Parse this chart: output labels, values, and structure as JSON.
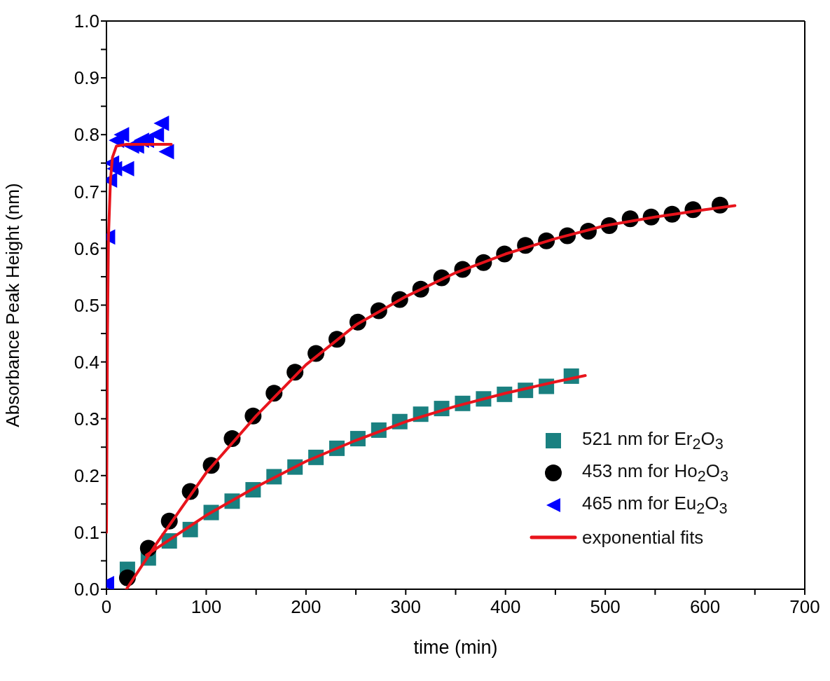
{
  "chart_data": {
    "type": "scatter",
    "xlabel": "time (min)",
    "ylabel": "Absorbance Peak Height (nm)",
    "xlim": [
      0,
      700
    ],
    "ylim": [
      0,
      1
    ],
    "xticks": [
      0,
      {
        "value": 50,
        "label": null
      },
      100,
      {
        "value": 150,
        "label": null
      },
      200,
      {
        "value": 250,
        "label": null
      },
      300,
      {
        "value": 350,
        "label": null
      },
      400,
      {
        "value": 450,
        "label": null
      },
      500,
      {
        "value": 550,
        "label": null
      },
      600,
      {
        "value": 650,
        "label": null
      },
      700
    ],
    "yticks": [
      {
        "value": 0,
        "label": "0.0"
      },
      {
        "value": 0.05,
        "label": null
      },
      0.1,
      {
        "value": 0.15,
        "label": null
      },
      0.2,
      {
        "value": 0.25,
        "label": null
      },
      0.3,
      {
        "value": 0.35,
        "label": null
      },
      0.4,
      {
        "value": 0.45,
        "label": null
      },
      0.5,
      {
        "value": 0.55,
        "label": null
      },
      0.6,
      {
        "value": 0.65,
        "label": null
      },
      0.7,
      {
        "value": 0.75,
        "label": null
      },
      0.8,
      {
        "value": 0.85,
        "label": null
      },
      0.9,
      {
        "value": 0.95,
        "label": null
      },
      {
        "value": 1,
        "label": "1.0"
      }
    ],
    "grid": false,
    "legend": "bottom right",
    "series": [
      {
        "name": "521 nm for Er$_{2}$O$_{3}$",
        "marker": "square",
        "color": "#1a8080",
        "x": [
          21,
          42,
          63,
          84,
          105,
          126,
          147,
          168,
          189,
          210,
          231,
          252,
          273,
          294,
          315,
          336,
          357,
          378,
          399,
          420,
          441,
          466
        ],
        "values": [
          0.035,
          0.055,
          0.085,
          0.105,
          0.135,
          0.155,
          0.175,
          0.198,
          0.215,
          0.232,
          0.248,
          0.265,
          0.28,
          0.295,
          0.308,
          0.318,
          0.327,
          0.335,
          0.343,
          0.35,
          0.357,
          0.375
        ]
      },
      {
        "name": "453 nm for Ho$_{2}$O$_{3}$",
        "marker": "circle",
        "color": "#000000",
        "x": [
          21,
          42,
          63,
          84,
          105,
          126,
          147,
          168,
          189,
          210,
          231,
          252,
          273,
          294,
          315,
          336,
          357,
          378,
          399,
          420,
          441,
          462,
          483,
          504,
          525,
          546,
          567,
          588,
          615
        ],
        "values": [
          0.02,
          0.072,
          0.12,
          0.172,
          0.218,
          0.265,
          0.305,
          0.345,
          0.382,
          0.415,
          0.44,
          0.47,
          0.49,
          0.51,
          0.528,
          0.548,
          0.563,
          0.575,
          0.59,
          0.605,
          0.613,
          0.622,
          0.63,
          0.64,
          0.652,
          0.655,
          0.66,
          0.668,
          0.676
        ]
      },
      {
        "name": "465 nm for Eu$_{2}$O$_{3}$",
        "marker": "triangle",
        "color": "#0000ff",
        "x": [
          0,
          1,
          3,
          5,
          8,
          10,
          15,
          20,
          25,
          30,
          35,
          40,
          50,
          55,
          60
        ],
        "values": [
          0.01,
          0.62,
          0.72,
          0.75,
          0.74,
          0.79,
          0.8,
          0.74,
          0.78,
          0.78,
          0.79,
          0.79,
          0.8,
          0.82,
          0.77
        ]
      },
      {
        "name": "exponential fits",
        "type": "line",
        "color": "#e8141c",
        "x": [
          0,
          1,
          2,
          4,
          6,
          10,
          20,
          40,
          65
        ],
        "values": [
          0.1,
          0.45,
          0.62,
          0.72,
          0.76,
          0.78,
          0.783,
          0.783,
          0.783
        ]
      },
      {
        "type": "line",
        "color": "#e8141c",
        "x": [
          20,
          50,
          100,
          150,
          200,
          250,
          300,
          350,
          400,
          450,
          500,
          550,
          600,
          630
        ],
        "values": [
          0,
          0.08,
          0.205,
          0.305,
          0.395,
          0.465,
          0.515,
          0.557,
          0.59,
          0.617,
          0.64,
          0.655,
          0.668,
          0.675
        ]
      },
      {
        "type": "line",
        "color": "#e8141c",
        "x": [
          40,
          100,
          150,
          200,
          250,
          300,
          350,
          400,
          450,
          480
        ],
        "values": [
          0.06,
          0.13,
          0.18,
          0.225,
          0.262,
          0.295,
          0.322,
          0.345,
          0.365,
          0.376
        ]
      }
    ]
  }
}
